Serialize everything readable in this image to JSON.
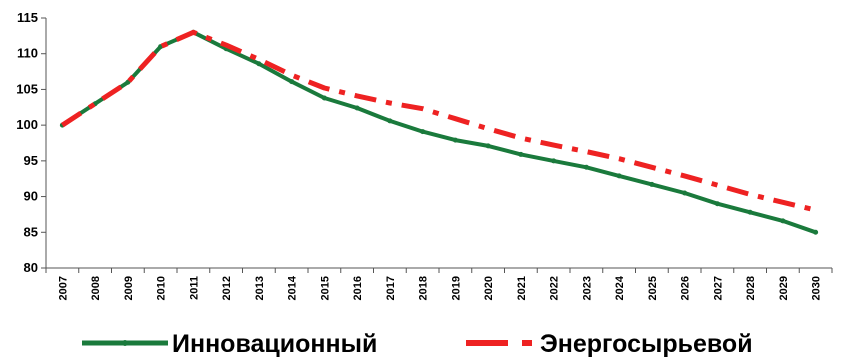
{
  "chart_data": {
    "type": "line",
    "x": [
      "2007",
      "2008",
      "2009",
      "2010",
      "2011",
      "2012",
      "2013",
      "2014",
      "2015",
      "2016",
      "2017",
      "2018",
      "2019",
      "2020",
      "2021",
      "2022",
      "2023",
      "2024",
      "2025",
      "2026",
      "2027",
      "2028",
      "2029",
      "2030"
    ],
    "yticks": [
      80,
      85,
      90,
      95,
      100,
      105,
      110,
      115
    ],
    "ylim": [
      80,
      115
    ],
    "grid": false,
    "legend_position": "bottom",
    "series": [
      {
        "name": "Инновационный",
        "color": "#1a7a3c",
        "style": "solid-with-markers",
        "values": [
          100,
          103,
          106,
          111,
          113,
          110.7,
          108.6,
          106.1,
          103.8,
          102.4,
          100.6,
          99.1,
          97.9,
          97.1,
          95.9,
          95.0,
          94.1,
          92.9,
          91.7,
          90.5,
          89.0,
          87.8,
          86.6,
          85.0
        ]
      },
      {
        "name": "Энергосырьевой",
        "color": "#ee2222",
        "style": "dashed",
        "values": [
          100,
          103,
          106,
          111,
          113,
          111.2,
          109.2,
          107.0,
          105.2,
          104.1,
          103.1,
          102.3,
          100.9,
          99.5,
          98.2,
          97.2,
          96.3,
          95.3,
          94.1,
          92.9,
          91.6,
          90.3,
          89.2,
          88.1
        ]
      }
    ]
  }
}
